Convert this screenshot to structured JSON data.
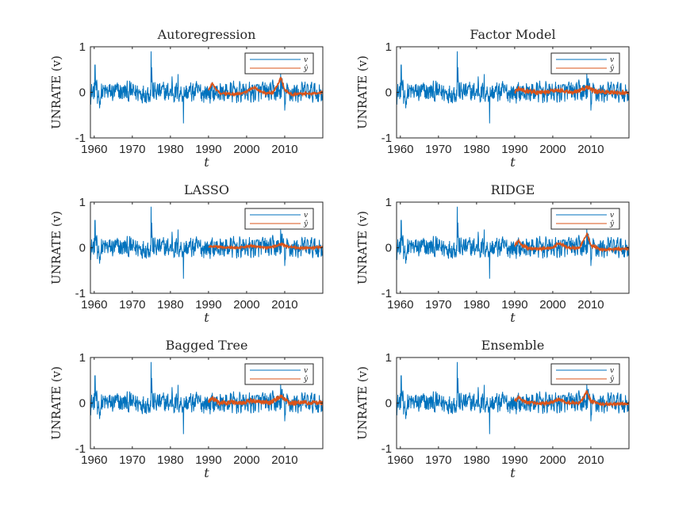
{
  "chart_data": [
    {
      "type": "line",
      "title": "Autoregression",
      "xlabel": "t",
      "ylabel": "UNRATE (v)",
      "xlim": [
        1959,
        2020
      ],
      "ylim": [
        -1,
        1
      ],
      "xticks": [
        "1960",
        "1970",
        "1980",
        "1990",
        "2000",
        "2010"
      ],
      "yticks": [
        "-1",
        "0",
        "1"
      ],
      "legend_position": "top-right",
      "series": [
        {
          "name": "v",
          "color": "#0072BD",
          "x_range": [
            1959,
            2020
          ],
          "note_points": [
            [
              1960.3,
              0.6
            ],
            [
              1961,
              -0.3
            ],
            [
              1975,
              0.9
            ],
            [
              1983.5,
              -0.65
            ],
            [
              2008.9,
              0.35
            ]
          ]
        },
        {
          "name": "ŷ",
          "color": "#D95319",
          "x_range": [
            1990,
            2020
          ],
          "points": [
            [
              1990,
              0.04
            ],
            [
              1991,
              0.2
            ],
            [
              1992,
              0.06
            ],
            [
              1993,
              -0.02
            ],
            [
              1995,
              -0.03
            ],
            [
              1997,
              -0.04
            ],
            [
              1999,
              -0.02
            ],
            [
              2001,
              0.06
            ],
            [
              2002,
              0.12
            ],
            [
              2003,
              0.05
            ],
            [
              2005,
              -0.02
            ],
            [
              2007,
              0.0
            ],
            [
              2008,
              0.15
            ],
            [
              2009,
              0.32
            ],
            [
              2010,
              0.05
            ],
            [
              2012,
              -0.05
            ],
            [
              2014,
              -0.03
            ],
            [
              2016,
              -0.03
            ],
            [
              2018,
              -0.02
            ],
            [
              2020,
              0.0
            ]
          ]
        }
      ]
    },
    {
      "type": "line",
      "title": "Factor Model",
      "xlabel": "t",
      "ylabel": "UNRATE (v)",
      "xlim": [
        1959,
        2020
      ],
      "ylim": [
        -1,
        1
      ],
      "xticks": [
        "1960",
        "1970",
        "1980",
        "1990",
        "2000",
        "2010"
      ],
      "yticks": [
        "-1",
        "0",
        "1"
      ],
      "legend_position": "top-right",
      "series": [
        {
          "name": "v",
          "color": "#0072BD",
          "x_range": [
            1959,
            2020
          ]
        },
        {
          "name": "ŷ",
          "color": "#D95319",
          "x_range": [
            1990,
            2020
          ],
          "points": [
            [
              1990,
              0.0
            ],
            [
              1991,
              0.08
            ],
            [
              1993,
              0.02
            ],
            [
              1995,
              0.0
            ],
            [
              1998,
              0.0
            ],
            [
              2001,
              0.05
            ],
            [
              2003,
              0.02
            ],
            [
              2005,
              0.0
            ],
            [
              2008,
              0.06
            ],
            [
              2009,
              0.12
            ],
            [
              2011,
              0.02
            ],
            [
              2014,
              0.0
            ],
            [
              2017,
              0.0
            ],
            [
              2020,
              0.0
            ]
          ]
        }
      ]
    },
    {
      "type": "line",
      "title": "LASSO",
      "xlabel": "t",
      "ylabel": "UNRATE (v)",
      "xlim": [
        1959,
        2020
      ],
      "ylim": [
        -1,
        1
      ],
      "xticks": [
        "1960",
        "1970",
        "1980",
        "1990",
        "2000",
        "2010"
      ],
      "yticks": [
        "-1",
        "0",
        "1"
      ],
      "legend_position": "top-right",
      "series": [
        {
          "name": "v",
          "color": "#0072BD",
          "x_range": [
            1959,
            2020
          ]
        },
        {
          "name": "ŷ",
          "color": "#D95319",
          "x_range": [
            1990,
            2020
          ],
          "points": [
            [
              1990,
              0.02
            ],
            [
              1992,
              0.03
            ],
            [
              1995,
              0.0
            ],
            [
              1998,
              0.0
            ],
            [
              2001,
              0.04
            ],
            [
              2003,
              0.02
            ],
            [
              2006,
              0.0
            ],
            [
              2008,
              0.05
            ],
            [
              2009,
              0.08
            ],
            [
              2011,
              0.02
            ],
            [
              2014,
              -0.01
            ],
            [
              2017,
              0.0
            ],
            [
              2020,
              0.01
            ]
          ]
        }
      ]
    },
    {
      "type": "line",
      "title": "RIDGE",
      "xlabel": "t",
      "ylabel": "UNRATE (v)",
      "xlim": [
        1959,
        2020
      ],
      "ylim": [
        -1,
        1
      ],
      "xticks": [
        "1960",
        "1970",
        "1980",
        "1990",
        "2000",
        "2010"
      ],
      "yticks": [
        "-1",
        "0",
        "1"
      ],
      "legend_position": "top-right",
      "series": [
        {
          "name": "v",
          "color": "#0072BD",
          "x_range": [
            1959,
            2020
          ]
        },
        {
          "name": "ŷ",
          "color": "#D95319",
          "x_range": [
            1990,
            2020
          ],
          "points": [
            [
              1990,
              0.05
            ],
            [
              1991,
              0.15
            ],
            [
              1992,
              0.05
            ],
            [
              1994,
              -0.02
            ],
            [
              1997,
              -0.03
            ],
            [
              2000,
              0.0
            ],
            [
              2001,
              0.08
            ],
            [
              2002,
              0.1
            ],
            [
              2004,
              0.0
            ],
            [
              2007,
              0.0
            ],
            [
              2008,
              0.15
            ],
            [
              2009,
              0.32
            ],
            [
              2010,
              0.05
            ],
            [
              2013,
              -0.05
            ],
            [
              2016,
              -0.03
            ],
            [
              2020,
              -0.02
            ]
          ]
        }
      ]
    },
    {
      "type": "line",
      "title": "Bagged Tree",
      "xlabel": "t",
      "ylabel": "UNRATE (v)",
      "xlim": [
        1959,
        2020
      ],
      "ylim": [
        -1,
        1
      ],
      "xticks": [
        "1960",
        "1970",
        "1980",
        "1990",
        "2000",
        "2010"
      ],
      "yticks": [
        "-1",
        "0",
        "1"
      ],
      "legend_position": "top-right",
      "series": [
        {
          "name": "v",
          "color": "#0072BD",
          "x_range": [
            1959,
            2020
          ]
        },
        {
          "name": "ŷ",
          "color": "#D95319",
          "x_range": [
            1990,
            2020
          ],
          "points": [
            [
              1990,
              0.05
            ],
            [
              1991,
              0.1
            ],
            [
              1993,
              0.0
            ],
            [
              1996,
              0.02
            ],
            [
              1999,
              0.0
            ],
            [
              2001,
              0.06
            ],
            [
              2003,
              0.03
            ],
            [
              2006,
              0.0
            ],
            [
              2008,
              0.1
            ],
            [
              2009,
              0.15
            ],
            [
              2011,
              0.0
            ],
            [
              2014,
              0.0
            ],
            [
              2017,
              0.0
            ],
            [
              2020,
              0.02
            ]
          ]
        }
      ]
    },
    {
      "type": "line",
      "title": "Ensemble",
      "xlabel": "t",
      "ylabel": "UNRATE (v)",
      "xlim": [
        1959,
        2020
      ],
      "ylim": [
        -1,
        1
      ],
      "xticks": [
        "1960",
        "1970",
        "1980",
        "1990",
        "2000",
        "2010"
      ],
      "yticks": [
        "-1",
        "0",
        "1"
      ],
      "legend_position": "top-right",
      "series": [
        {
          "name": "v",
          "color": "#0072BD",
          "x_range": [
            1959,
            2020
          ]
        },
        {
          "name": "ŷ",
          "color": "#D95319",
          "x_range": [
            1990,
            2020
          ],
          "points": [
            [
              1990,
              0.04
            ],
            [
              1991,
              0.12
            ],
            [
              1993,
              0.02
            ],
            [
              1996,
              -0.01
            ],
            [
              1999,
              0.0
            ],
            [
              2001,
              0.06
            ],
            [
              2002,
              0.08
            ],
            [
              2004,
              0.0
            ],
            [
              2007,
              0.0
            ],
            [
              2008,
              0.12
            ],
            [
              2009,
              0.25
            ],
            [
              2010,
              0.04
            ],
            [
              2013,
              -0.03
            ],
            [
              2016,
              -0.02
            ],
            [
              2020,
              -0.01
            ]
          ]
        }
      ]
    }
  ]
}
